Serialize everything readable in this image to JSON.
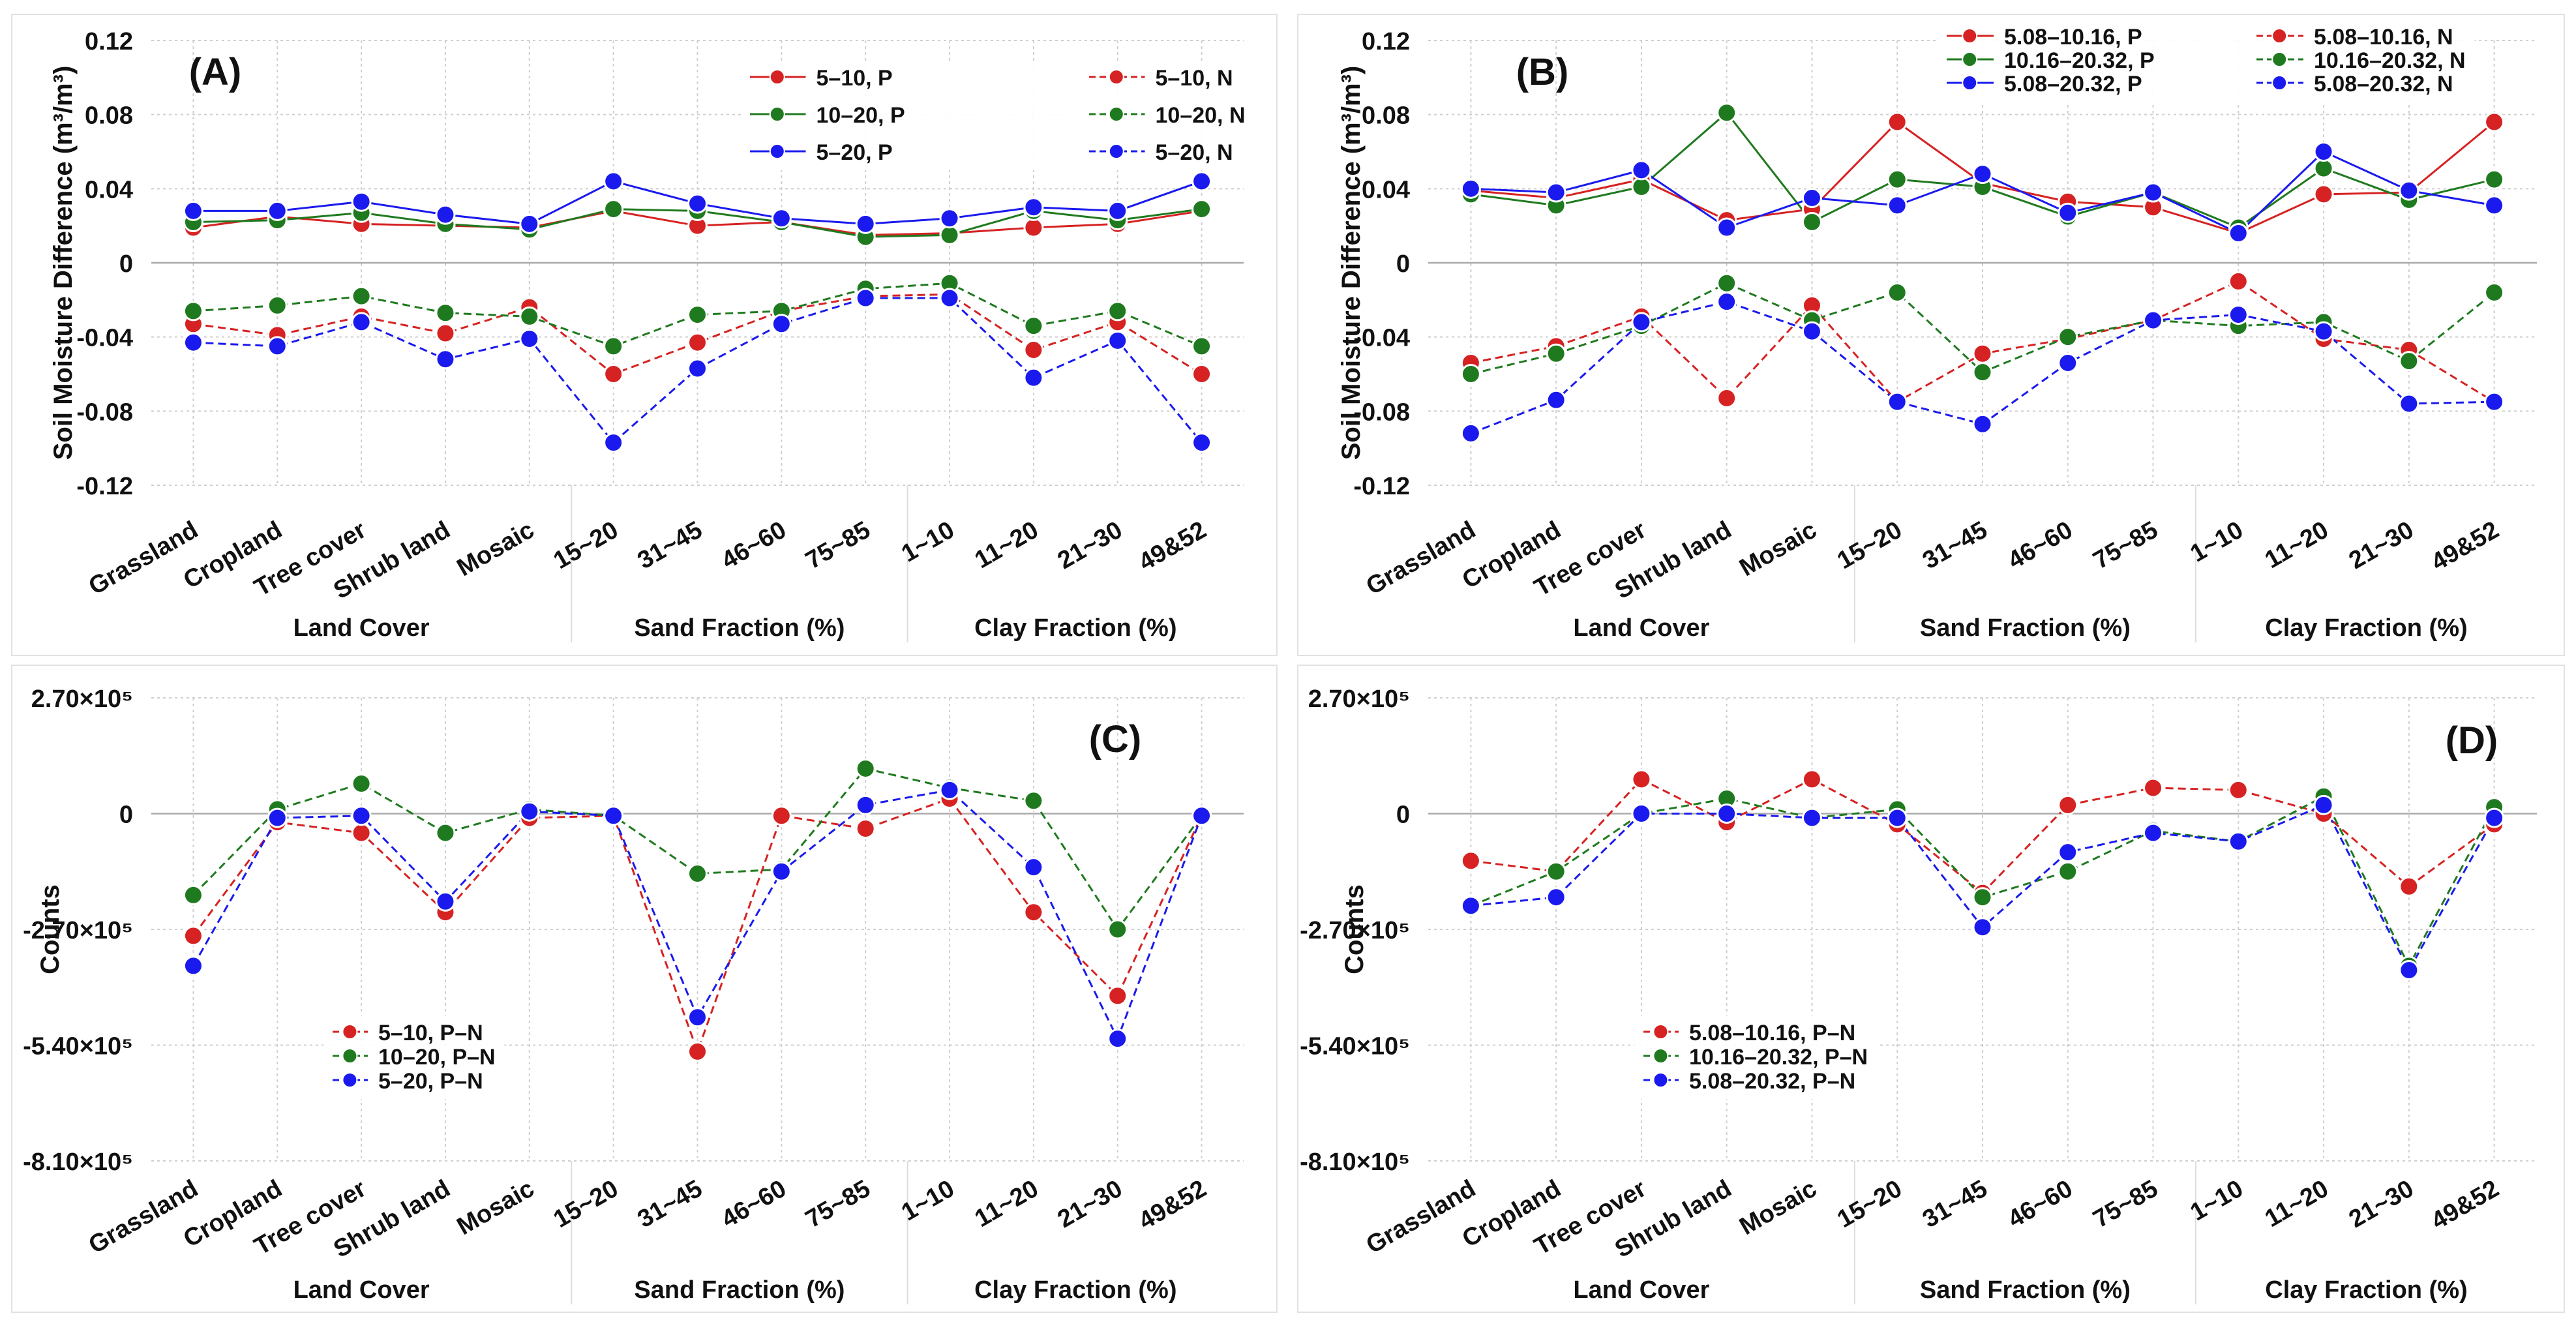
{
  "categories": [
    "Grassland",
    "Cropland",
    "Tree cover",
    "Shrub land",
    "Mosaic",
    "15~20",
    "31~45",
    "46~60",
    "75~85",
    "1~10",
    "11~20",
    "21~30",
    "49&52"
  ],
  "groups": [
    "Land Cover",
    "Sand Fraction (%)",
    "Clay Fraction (%)"
  ],
  "colors": {
    "red": "#d62222",
    "green": "#1f7a1f",
    "blue": "#1a1aee"
  },
  "chart_data": [
    {
      "panel": "(A)",
      "type": "line",
      "ylabel": "Soil Moisture Difference (m³/m³)",
      "ylim": [
        -0.12,
        0.12
      ],
      "yticks": [
        "0.12",
        "0.08",
        "0.04",
        "0",
        "-0.04",
        "-0.08",
        "-0.12"
      ],
      "legend_position": "top-right",
      "series": [
        {
          "name": "5–10, P",
          "color": "red",
          "dash": false,
          "values": [
            0.019,
            0.025,
            0.021,
            0.02,
            0.019,
            0.028,
            0.02,
            0.022,
            0.015,
            0.016,
            0.019,
            0.021,
            0.028
          ]
        },
        {
          "name": "10–20, P",
          "color": "green",
          "dash": false,
          "values": [
            0.022,
            0.023,
            0.027,
            0.021,
            0.018,
            0.029,
            0.028,
            0.022,
            0.014,
            0.015,
            0.028,
            0.023,
            0.029
          ]
        },
        {
          "name": "5–20, P",
          "color": "blue",
          "dash": false,
          "values": [
            0.028,
            0.028,
            0.033,
            0.026,
            0.021,
            0.044,
            0.032,
            0.024,
            0.021,
            0.024,
            0.03,
            0.028,
            0.044
          ]
        },
        {
          "name": "5–10, N",
          "color": "red",
          "dash": true,
          "values": [
            -0.033,
            -0.039,
            -0.029,
            -0.038,
            -0.024,
            -0.06,
            -0.043,
            -0.026,
            -0.018,
            -0.017,
            -0.047,
            -0.032,
            -0.06
          ]
        },
        {
          "name": "10–20, N",
          "color": "green",
          "dash": true,
          "values": [
            -0.026,
            -0.023,
            -0.018,
            -0.027,
            -0.029,
            -0.045,
            -0.028,
            -0.026,
            -0.014,
            -0.011,
            -0.034,
            -0.026,
            -0.045
          ]
        },
        {
          "name": "5–20, N",
          "color": "blue",
          "dash": true,
          "values": [
            -0.043,
            -0.045,
            -0.032,
            -0.052,
            -0.041,
            -0.097,
            -0.057,
            -0.033,
            -0.019,
            -0.019,
            -0.062,
            -0.042,
            -0.097
          ]
        }
      ]
    },
    {
      "panel": "(B)",
      "type": "line",
      "ylabel": "Soil Moisture Difference (m³/m³)",
      "ylim": [
        -0.12,
        0.12
      ],
      "yticks": [
        "0.12",
        "0.08",
        "0.04",
        "0",
        "-0.04",
        "-0.08",
        "-0.12"
      ],
      "legend_position": "top",
      "series": [
        {
          "name": "5.08–10.16, P",
          "color": "red",
          "dash": false,
          "values": [
            0.039,
            0.035,
            0.045,
            0.023,
            0.029,
            0.076,
            0.043,
            0.033,
            0.03,
            0.016,
            0.037,
            0.038,
            0.076
          ]
        },
        {
          "name": "10.16–20.32, P",
          "color": "green",
          "dash": false,
          "values": [
            0.037,
            0.031,
            0.041,
            0.081,
            0.022,
            0.045,
            0.041,
            0.025,
            0.038,
            0.019,
            0.051,
            0.034,
            0.045
          ]
        },
        {
          "name": "5.08–20.32, P",
          "color": "blue",
          "dash": false,
          "values": [
            0.04,
            0.038,
            0.05,
            0.019,
            0.035,
            0.031,
            0.048,
            0.027,
            0.038,
            0.016,
            0.06,
            0.039,
            0.031
          ]
        },
        {
          "name": "5.08–10.16, N",
          "color": "red",
          "dash": true,
          "values": [
            -0.054,
            -0.045,
            -0.029,
            -0.073,
            -0.023,
            -0.075,
            -0.049,
            -0.041,
            -0.031,
            -0.01,
            -0.041,
            -0.047,
            -0.075
          ]
        },
        {
          "name": "10.16–20.32, N",
          "color": "green",
          "dash": true,
          "values": [
            -0.06,
            -0.049,
            -0.034,
            -0.011,
            -0.031,
            -0.016,
            -0.059,
            -0.04,
            -0.031,
            -0.034,
            -0.032,
            -0.053,
            -0.016
          ]
        },
        {
          "name": "5.08–20.32, N",
          "color": "blue",
          "dash": true,
          "values": [
            -0.092,
            -0.074,
            -0.032,
            -0.021,
            -0.037,
            -0.075,
            -0.087,
            -0.054,
            -0.031,
            -0.028,
            -0.037,
            -0.076,
            -0.075
          ]
        }
      ]
    },
    {
      "panel": "(C)",
      "type": "line",
      "ylabel": "Counts",
      "ylim": [
        -810000,
        270000
      ],
      "yticks": [
        "2.70×10⁵",
        "0",
        "-2.70×10⁵",
        "-5.40×10⁵",
        "-8.10×10⁵"
      ],
      "legend_position": "bottom-left",
      "series": [
        {
          "name": "5–10, P–N",
          "color": "red",
          "dash": true,
          "values": [
            -285000,
            -20000,
            -45000,
            -230000,
            -10000,
            -5000,
            -555000,
            -5000,
            -35000,
            35000,
            -230000,
            -425000,
            -5000
          ]
        },
        {
          "name": "10–20, P–N",
          "color": "green",
          "dash": true,
          "values": [
            -190000,
            10000,
            70000,
            -45000,
            10000,
            -5000,
            -140000,
            -130000,
            105000,
            60000,
            30000,
            -270000,
            -5000
          ]
        },
        {
          "name": "5–20, P–N",
          "color": "blue",
          "dash": true,
          "values": [
            -355000,
            -10000,
            -5000,
            -205000,
            5000,
            -5000,
            -475000,
            -135000,
            20000,
            55000,
            -125000,
            -525000,
            -5000
          ]
        }
      ]
    },
    {
      "panel": "(D)",
      "type": "line",
      "ylabel": "Counts",
      "ylim": [
        -810000,
        270000
      ],
      "yticks": [
        "2.70×10⁵",
        "0",
        "-2.70×10⁵",
        "-5.40×10⁵",
        "-8.10×10⁵"
      ],
      "legend_position": "bottom-left",
      "series": [
        {
          "name": "5.08–10.16, P–N",
          "color": "red",
          "dash": true,
          "values": [
            -110000,
            -135000,
            80000,
            -20000,
            80000,
            -25000,
            -185000,
            20000,
            60000,
            55000,
            0,
            -170000,
            -25000
          ]
        },
        {
          "name": "10.16–20.32, P–N",
          "color": "green",
          "dash": true,
          "values": [
            -215000,
            -135000,
            0,
            35000,
            -10000,
            10000,
            -195000,
            -135000,
            -40000,
            -65000,
            40000,
            -355000,
            15000
          ]
        },
        {
          "name": "5.08–20.32, P–N",
          "color": "blue",
          "dash": true,
          "values": [
            -215000,
            -195000,
            0,
            0,
            -10000,
            -10000,
            -265000,
            -90000,
            -45000,
            -65000,
            20000,
            -365000,
            -10000
          ]
        }
      ]
    }
  ]
}
